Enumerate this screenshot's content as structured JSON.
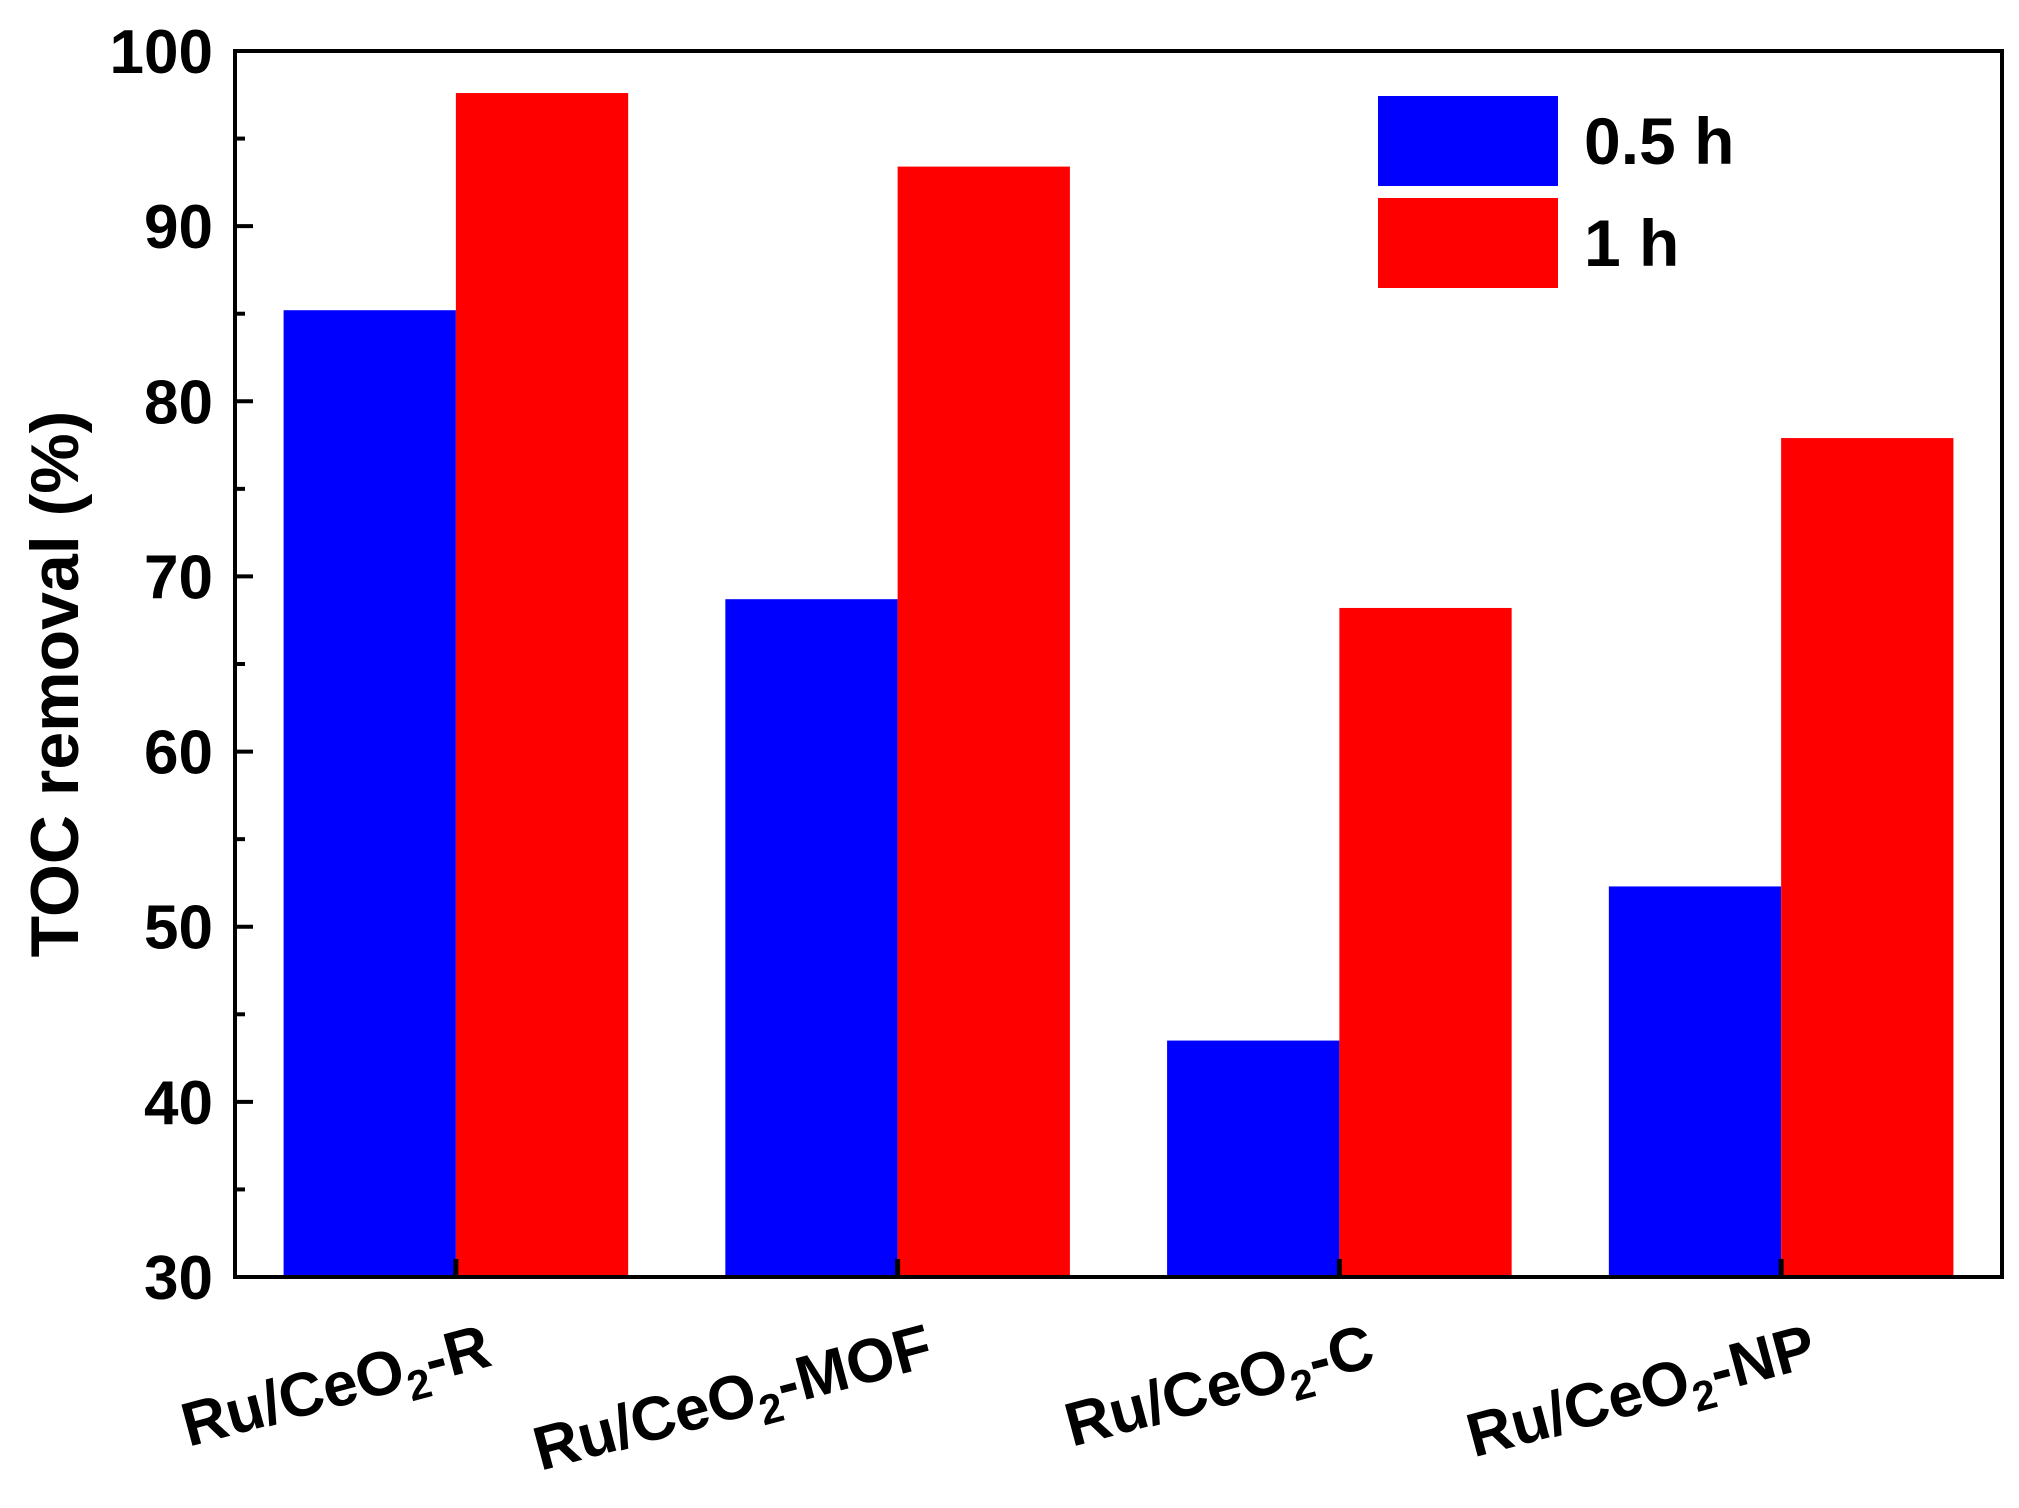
{
  "chart_data": {
    "type": "bar",
    "ylabel": "TOC removal (%)",
    "ylim": [
      30,
      100
    ],
    "yticks": [
      "30",
      "40",
      "50",
      "60",
      "70",
      "80",
      "90",
      "100"
    ],
    "categories": [
      {
        "base": "Ru/CeO",
        "sub": "2",
        "suffix": "-R"
      },
      {
        "base": "Ru/CeO",
        "sub": "2",
        "suffix": "-MOF"
      },
      {
        "base": "Ru/CeO",
        "sub": "2",
        "suffix": "-C"
      },
      {
        "base": "Ru/CeO",
        "sub": "2",
        "suffix": "-NP"
      }
    ],
    "series": [
      {
        "name": "0.5 h",
        "color": "#0000ff",
        "values": [
          85.2,
          68.7,
          43.5,
          52.3
        ]
      },
      {
        "name": "1 h",
        "color": "#ff0000",
        "values": [
          97.6,
          93.4,
          68.2,
          77.9
        ]
      }
    ],
    "legend_position": "top-right",
    "grid": false
  }
}
